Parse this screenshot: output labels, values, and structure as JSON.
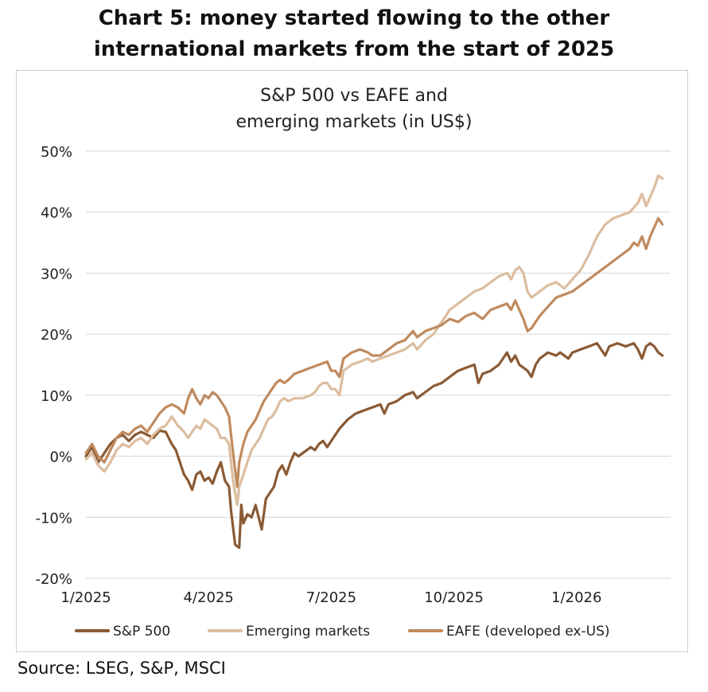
{
  "heading": {
    "line1": "Chart 5: money started flowing to the other",
    "line2": "international markets from the start of 2025"
  },
  "source": "Source: LSEG, S&P, MSCI",
  "colors": {
    "sp500": "#8a5a34",
    "emerging": "#dcbda0",
    "eafe": "#c08a5e",
    "grid": "#d4d4d4",
    "axis_text": "#222222"
  },
  "chart_data": {
    "type": "line",
    "title": "S&P 500 vs EAFE and emerging markets (in US$)",
    "title_lines": [
      "S&P 500 vs EAFE and",
      "emerging markets (in US$)"
    ],
    "xlabel": "",
    "ylabel": "",
    "x_units": "months since 1/2025",
    "xlim": [
      0,
      14.3
    ],
    "ylim": [
      -20,
      50
    ],
    "grid": true,
    "legend_position": "bottom",
    "y_ticks": [
      -20,
      -10,
      0,
      10,
      20,
      30,
      40,
      50
    ],
    "y_tick_labels": [
      "-20%",
      "-10%",
      "0%",
      "10%",
      "20%",
      "30%",
      "40%",
      "50%"
    ],
    "x_ticks": [
      0,
      3,
      6,
      9,
      12
    ],
    "x_tick_labels": [
      "1/2025",
      "4/2025",
      "7/2025",
      "10/2025",
      "1/2026"
    ],
    "series": [
      {
        "name": "S&P 500",
        "color_key": "sp500",
        "points": [
          [
            0,
            0
          ],
          [
            0.15,
            1.5
          ],
          [
            0.3,
            -1
          ],
          [
            0.45,
            0.5
          ],
          [
            0.6,
            2
          ],
          [
            0.75,
            3
          ],
          [
            0.9,
            3.5
          ],
          [
            1.05,
            2.5
          ],
          [
            1.2,
            3.5
          ],
          [
            1.35,
            4
          ],
          [
            1.5,
            3.5
          ],
          [
            1.65,
            3
          ],
          [
            1.8,
            4.2
          ],
          [
            1.95,
            4
          ],
          [
            2.1,
            2
          ],
          [
            2.2,
            1
          ],
          [
            2.3,
            -1
          ],
          [
            2.4,
            -3
          ],
          [
            2.5,
            -4
          ],
          [
            2.6,
            -5.5
          ],
          [
            2.7,
            -3
          ],
          [
            2.8,
            -2.5
          ],
          [
            2.9,
            -4
          ],
          [
            3.0,
            -3.5
          ],
          [
            3.1,
            -4.5
          ],
          [
            3.2,
            -2.5
          ],
          [
            3.3,
            -1
          ],
          [
            3.4,
            -4
          ],
          [
            3.5,
            -5
          ],
          [
            3.55,
            -9
          ],
          [
            3.65,
            -14.5
          ],
          [
            3.75,
            -15
          ],
          [
            3.8,
            -8
          ],
          [
            3.85,
            -11
          ],
          [
            3.95,
            -9.5
          ],
          [
            4.05,
            -10
          ],
          [
            4.15,
            -8
          ],
          [
            4.3,
            -12
          ],
          [
            4.4,
            -7
          ],
          [
            4.5,
            -6
          ],
          [
            4.6,
            -5
          ],
          [
            4.7,
            -2.5
          ],
          [
            4.8,
            -1.5
          ],
          [
            4.9,
            -3
          ],
          [
            5.0,
            -1
          ],
          [
            5.1,
            0.5
          ],
          [
            5.2,
            0
          ],
          [
            5.3,
            0.5
          ],
          [
            5.4,
            1
          ],
          [
            5.5,
            1.5
          ],
          [
            5.6,
            1
          ],
          [
            5.7,
            2
          ],
          [
            5.8,
            2.5
          ],
          [
            5.9,
            1.5
          ],
          [
            6.0,
            2.5
          ],
          [
            6.2,
            4.5
          ],
          [
            6.4,
            6
          ],
          [
            6.6,
            7
          ],
          [
            6.8,
            7.5
          ],
          [
            7.0,
            8
          ],
          [
            7.2,
            8.5
          ],
          [
            7.3,
            7
          ],
          [
            7.4,
            8.5
          ],
          [
            7.6,
            9
          ],
          [
            7.8,
            10
          ],
          [
            8.0,
            10.5
          ],
          [
            8.1,
            9.5
          ],
          [
            8.3,
            10.5
          ],
          [
            8.5,
            11.5
          ],
          [
            8.7,
            12
          ],
          [
            8.9,
            13
          ],
          [
            9.1,
            14
          ],
          [
            9.3,
            14.5
          ],
          [
            9.5,
            15
          ],
          [
            9.6,
            12
          ],
          [
            9.7,
            13.5
          ],
          [
            9.9,
            14
          ],
          [
            10.1,
            15
          ],
          [
            10.3,
            17
          ],
          [
            10.4,
            15.5
          ],
          [
            10.5,
            16.5
          ],
          [
            10.6,
            15
          ],
          [
            10.7,
            14.5
          ],
          [
            10.8,
            14
          ],
          [
            10.9,
            13
          ],
          [
            11.0,
            15
          ],
          [
            11.1,
            16
          ],
          [
            11.3,
            17
          ],
          [
            11.5,
            16.5
          ],
          [
            11.6,
            17
          ],
          [
            11.8,
            16
          ],
          [
            11.9,
            17
          ],
          [
            12.1,
            17.5
          ],
          [
            12.3,
            18
          ],
          [
            12.5,
            18.5
          ],
          [
            12.6,
            17.5
          ],
          [
            12.7,
            16.5
          ],
          [
            12.8,
            18
          ],
          [
            13.0,
            18.5
          ],
          [
            13.2,
            18
          ],
          [
            13.4,
            18.5
          ],
          [
            13.5,
            17.5
          ],
          [
            13.6,
            16
          ],
          [
            13.7,
            18
          ],
          [
            13.8,
            18.5
          ],
          [
            13.9,
            18
          ],
          [
            14.0,
            17
          ],
          [
            14.1,
            16.5
          ]
        ]
      },
      {
        "name": "Emerging markets",
        "color_key": "emerging",
        "points": [
          [
            0,
            -0.5
          ],
          [
            0.15,
            0.5
          ],
          [
            0.3,
            -1.5
          ],
          [
            0.45,
            -2.5
          ],
          [
            0.6,
            -1
          ],
          [
            0.75,
            1
          ],
          [
            0.9,
            2
          ],
          [
            1.05,
            1.5
          ],
          [
            1.2,
            2.5
          ],
          [
            1.35,
            3
          ],
          [
            1.5,
            2
          ],
          [
            1.65,
            3.5
          ],
          [
            1.8,
            4.5
          ],
          [
            1.95,
            5
          ],
          [
            2.1,
            6.5
          ],
          [
            2.25,
            5
          ],
          [
            2.4,
            4
          ],
          [
            2.5,
            3
          ],
          [
            2.6,
            4
          ],
          [
            2.7,
            5
          ],
          [
            2.8,
            4.5
          ],
          [
            2.9,
            6
          ],
          [
            3.0,
            5.5
          ],
          [
            3.1,
            5
          ],
          [
            3.2,
            4.5
          ],
          [
            3.3,
            3
          ],
          [
            3.4,
            3
          ],
          [
            3.5,
            2
          ],
          [
            3.6,
            -4
          ],
          [
            3.7,
            -8
          ],
          [
            3.75,
            -5
          ],
          [
            3.85,
            -3
          ],
          [
            3.95,
            -1
          ],
          [
            4.05,
            1
          ],
          [
            4.15,
            2
          ],
          [
            4.25,
            3
          ],
          [
            4.35,
            4.5
          ],
          [
            4.45,
            6
          ],
          [
            4.55,
            6.5
          ],
          [
            4.65,
            7.5
          ],
          [
            4.75,
            9
          ],
          [
            4.85,
            9.5
          ],
          [
            4.95,
            9
          ],
          [
            5.1,
            9.5
          ],
          [
            5.3,
            9.5
          ],
          [
            5.5,
            10
          ],
          [
            5.6,
            10.5
          ],
          [
            5.7,
            11.5
          ],
          [
            5.8,
            12
          ],
          [
            5.9,
            12
          ],
          [
            6.0,
            11
          ],
          [
            6.1,
            11
          ],
          [
            6.2,
            10
          ],
          [
            6.3,
            14
          ],
          [
            6.5,
            15
          ],
          [
            6.7,
            15.5
          ],
          [
            6.9,
            16
          ],
          [
            7.0,
            15.5
          ],
          [
            7.2,
            16
          ],
          [
            7.4,
            16.5
          ],
          [
            7.6,
            17
          ],
          [
            7.8,
            17.5
          ],
          [
            8.0,
            18.5
          ],
          [
            8.1,
            17.5
          ],
          [
            8.3,
            19
          ],
          [
            8.5,
            20
          ],
          [
            8.7,
            22
          ],
          [
            8.9,
            24
          ],
          [
            9.1,
            25
          ],
          [
            9.3,
            26
          ],
          [
            9.5,
            27
          ],
          [
            9.7,
            27.5
          ],
          [
            9.9,
            28.5
          ],
          [
            10.1,
            29.5
          ],
          [
            10.3,
            30
          ],
          [
            10.4,
            29
          ],
          [
            10.5,
            30.5
          ],
          [
            10.6,
            31
          ],
          [
            10.7,
            30
          ],
          [
            10.8,
            27
          ],
          [
            10.9,
            26
          ],
          [
            11.1,
            27
          ],
          [
            11.3,
            28
          ],
          [
            11.5,
            28.5
          ],
          [
            11.7,
            27.5
          ],
          [
            11.9,
            29
          ],
          [
            12.1,
            30.5
          ],
          [
            12.3,
            33
          ],
          [
            12.5,
            36
          ],
          [
            12.7,
            38
          ],
          [
            12.9,
            39
          ],
          [
            13.1,
            39.5
          ],
          [
            13.3,
            40
          ],
          [
            13.5,
            41.5
          ],
          [
            13.6,
            43
          ],
          [
            13.7,
            41
          ],
          [
            13.8,
            42.5
          ],
          [
            13.9,
            44
          ],
          [
            14.0,
            46
          ],
          [
            14.1,
            45.5
          ]
        ]
      },
      {
        "name": "EAFE (developed ex-US)",
        "color_key": "eafe",
        "points": [
          [
            0,
            0.5
          ],
          [
            0.15,
            2
          ],
          [
            0.3,
            0
          ],
          [
            0.45,
            -1
          ],
          [
            0.6,
            1
          ],
          [
            0.75,
            3
          ],
          [
            0.9,
            4
          ],
          [
            1.05,
            3.5
          ],
          [
            1.2,
            4.5
          ],
          [
            1.35,
            5
          ],
          [
            1.5,
            4
          ],
          [
            1.65,
            5.5
          ],
          [
            1.8,
            7
          ],
          [
            1.95,
            8
          ],
          [
            2.1,
            8.5
          ],
          [
            2.25,
            8
          ],
          [
            2.4,
            7
          ],
          [
            2.5,
            9.5
          ],
          [
            2.6,
            11
          ],
          [
            2.7,
            9.5
          ],
          [
            2.8,
            8.5
          ],
          [
            2.9,
            10
          ],
          [
            3.0,
            9.5
          ],
          [
            3.1,
            10.5
          ],
          [
            3.2,
            10
          ],
          [
            3.3,
            9
          ],
          [
            3.4,
            8
          ],
          [
            3.5,
            6.5
          ],
          [
            3.6,
            0.5
          ],
          [
            3.7,
            -5
          ],
          [
            3.75,
            -1
          ],
          [
            3.85,
            2
          ],
          [
            3.95,
            4
          ],
          [
            4.05,
            5
          ],
          [
            4.15,
            6
          ],
          [
            4.25,
            7.5
          ],
          [
            4.35,
            9
          ],
          [
            4.45,
            10
          ],
          [
            4.55,
            11
          ],
          [
            4.65,
            12
          ],
          [
            4.75,
            12.5
          ],
          [
            4.85,
            12
          ],
          [
            4.95,
            12.5
          ],
          [
            5.1,
            13.5
          ],
          [
            5.3,
            14
          ],
          [
            5.5,
            14.5
          ],
          [
            5.7,
            15
          ],
          [
            5.9,
            15.5
          ],
          [
            6.0,
            14
          ],
          [
            6.1,
            14
          ],
          [
            6.2,
            13
          ],
          [
            6.3,
            16
          ],
          [
            6.5,
            17
          ],
          [
            6.7,
            17.5
          ],
          [
            6.9,
            17
          ],
          [
            7.0,
            16.5
          ],
          [
            7.2,
            16.5
          ],
          [
            7.4,
            17.5
          ],
          [
            7.6,
            18.5
          ],
          [
            7.8,
            19
          ],
          [
            8.0,
            20.5
          ],
          [
            8.1,
            19.5
          ],
          [
            8.3,
            20.5
          ],
          [
            8.5,
            21
          ],
          [
            8.7,
            21.5
          ],
          [
            8.9,
            22.5
          ],
          [
            9.1,
            22
          ],
          [
            9.3,
            23
          ],
          [
            9.5,
            23.5
          ],
          [
            9.7,
            22.5
          ],
          [
            9.9,
            24
          ],
          [
            10.1,
            24.5
          ],
          [
            10.3,
            25
          ],
          [
            10.4,
            24
          ],
          [
            10.5,
            25.5
          ],
          [
            10.6,
            24
          ],
          [
            10.7,
            22.5
          ],
          [
            10.8,
            20.5
          ],
          [
            10.9,
            21
          ],
          [
            11.1,
            23
          ],
          [
            11.3,
            24.5
          ],
          [
            11.5,
            26
          ],
          [
            11.7,
            26.5
          ],
          [
            11.9,
            27
          ],
          [
            12.1,
            28
          ],
          [
            12.3,
            29
          ],
          [
            12.5,
            30
          ],
          [
            12.7,
            31
          ],
          [
            12.9,
            32
          ],
          [
            13.1,
            33
          ],
          [
            13.3,
            34
          ],
          [
            13.4,
            35
          ],
          [
            13.5,
            34.5
          ],
          [
            13.6,
            36
          ],
          [
            13.7,
            34
          ],
          [
            13.8,
            36
          ],
          [
            13.9,
            37.5
          ],
          [
            14.0,
            39
          ],
          [
            14.1,
            38
          ]
        ]
      }
    ]
  }
}
